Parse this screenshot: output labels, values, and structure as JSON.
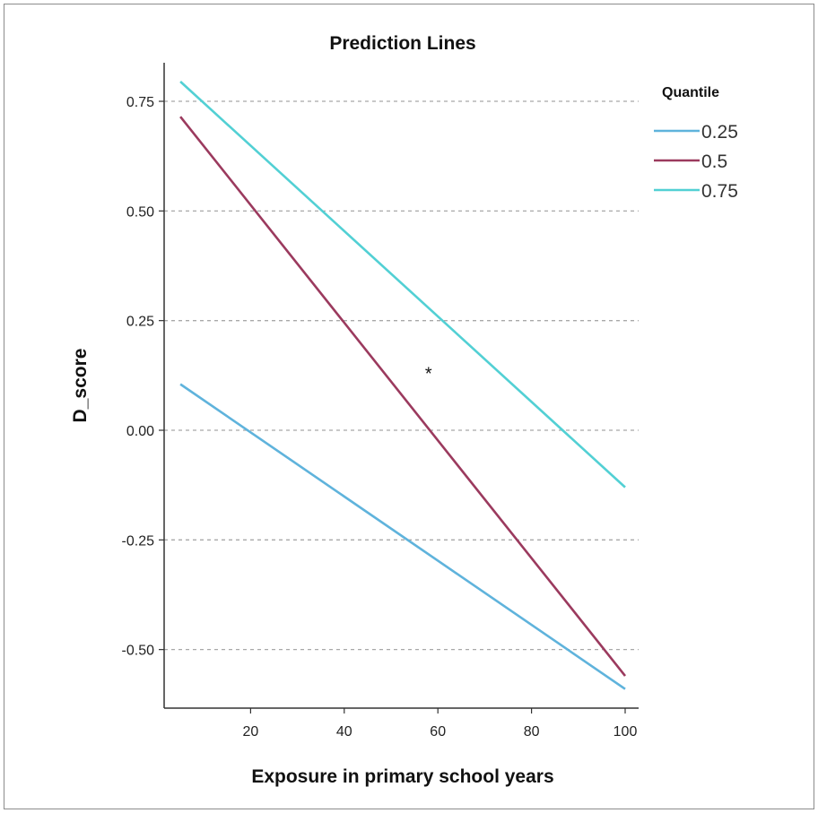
{
  "chart_data": {
    "type": "line",
    "title": "Prediction Lines",
    "xlabel": "Exposure in primary school years",
    "ylabel": "D_score",
    "xlim": [
      0,
      100
    ],
    "ylim": [
      -0.62,
      0.85
    ],
    "x_ticks": [
      20,
      40,
      60,
      80,
      100
    ],
    "y_ticks": [
      0.75,
      0.5,
      0.25,
      0.0,
      -0.25,
      -0.5
    ],
    "y_tick_labels": [
      "0.75",
      "0.50",
      "0.25",
      "0.00",
      "-0.25",
      "-0.50"
    ],
    "grid": "horizontal dashed",
    "legend": {
      "title": "Quantile",
      "placement": "top-right"
    },
    "annotation": "*",
    "annotation_point": {
      "x": 58,
      "y": 0.13
    },
    "series": [
      {
        "name": "0.25",
        "color": "#5fb3dc",
        "x": [
          5,
          100
        ],
        "y": [
          0.105,
          -0.59
        ]
      },
      {
        "name": "0.5",
        "color": "#9b3a5e",
        "x": [
          5,
          100
        ],
        "y": [
          0.715,
          -0.56
        ]
      },
      {
        "name": "0.75",
        "color": "#52d0d4",
        "x": [
          5,
          100
        ],
        "y": [
          0.795,
          -0.13
        ]
      }
    ]
  }
}
